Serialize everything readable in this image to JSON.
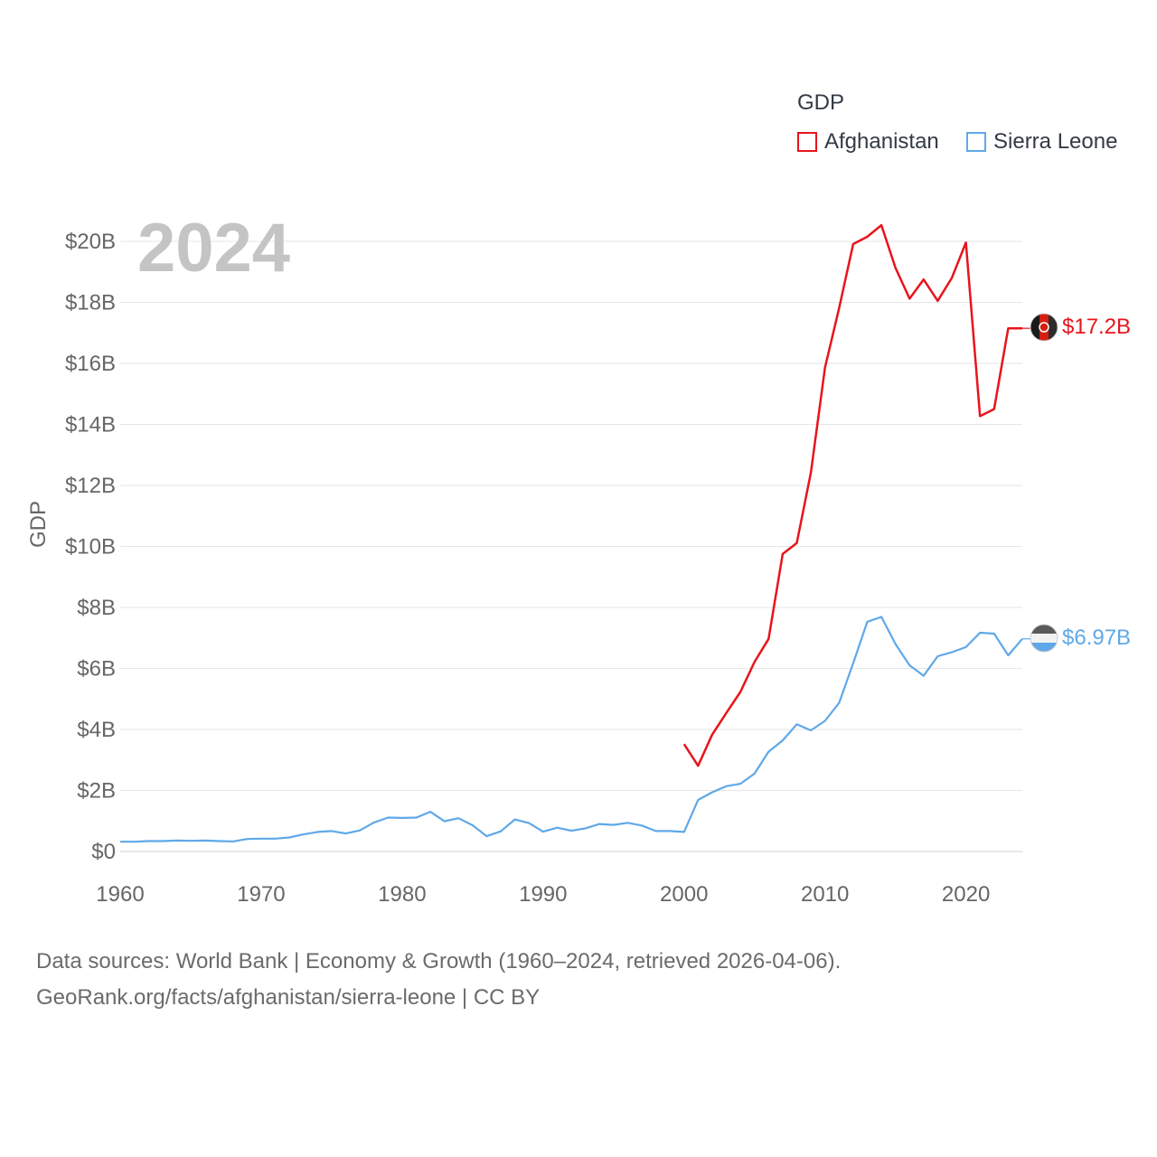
{
  "chart_data": {
    "type": "line",
    "year_watermark": "2024",
    "ylabel": "GDP",
    "legend_title": "GDP",
    "ylim": [
      0,
      21000000000
    ],
    "xlim": [
      1960,
      2024
    ],
    "y_ticks": [
      {
        "value": 0,
        "label": "$0"
      },
      {
        "value": 2000000000,
        "label": "$2B"
      },
      {
        "value": 4000000000,
        "label": "$4B"
      },
      {
        "value": 6000000000,
        "label": "$6B"
      },
      {
        "value": 8000000000,
        "label": "$8B"
      },
      {
        "value": 10000000000,
        "label": "$10B"
      },
      {
        "value": 12000000000,
        "label": "$12B"
      },
      {
        "value": 14000000000,
        "label": "$14B"
      },
      {
        "value": 16000000000,
        "label": "$16B"
      },
      {
        "value": 18000000000,
        "label": "$18B"
      },
      {
        "value": 20000000000,
        "label": "$20B"
      }
    ],
    "x_ticks": [
      {
        "value": 1960,
        "label": "1960"
      },
      {
        "value": 1970,
        "label": "1970"
      },
      {
        "value": 1980,
        "label": "1980"
      },
      {
        "value": 1990,
        "label": "1990"
      },
      {
        "value": 2000,
        "label": "2000"
      },
      {
        "value": 2010,
        "label": "2010"
      },
      {
        "value": 2020,
        "label": "2020"
      }
    ],
    "series": [
      {
        "name": "Afghanistan",
        "color": "#e8141c",
        "end_label": "$17.2B",
        "points": [
          [
            2000,
            3.52
          ],
          [
            2001,
            2.81
          ],
          [
            2002,
            3.83
          ],
          [
            2003,
            4.54
          ],
          [
            2004,
            5.23
          ],
          [
            2005,
            6.21
          ],
          [
            2006,
            6.97
          ],
          [
            2007,
            9.75
          ],
          [
            2008,
            10.11
          ],
          [
            2009,
            12.42
          ],
          [
            2010,
            15.86
          ],
          [
            2011,
            17.81
          ],
          [
            2012,
            19.91
          ],
          [
            2013,
            20.15
          ],
          [
            2014,
            20.53
          ],
          [
            2015,
            19.13
          ],
          [
            2016,
            18.12
          ],
          [
            2017,
            18.75
          ],
          [
            2018,
            18.05
          ],
          [
            2019,
            18.8
          ],
          [
            2020,
            19.96
          ],
          [
            2021,
            14.27
          ],
          [
            2022,
            14.5
          ],
          [
            2023,
            17.15
          ],
          [
            2024,
            17.15
          ]
        ]
      },
      {
        "name": "Sierra Leone",
        "color": "#5fa8e8",
        "end_label": "$6.97B",
        "points": [
          [
            1960,
            0.32
          ],
          [
            1961,
            0.32
          ],
          [
            1962,
            0.34
          ],
          [
            1963,
            0.34
          ],
          [
            1964,
            0.36
          ],
          [
            1965,
            0.35
          ],
          [
            1966,
            0.36
          ],
          [
            1967,
            0.34
          ],
          [
            1968,
            0.33
          ],
          [
            1969,
            0.41
          ],
          [
            1970,
            0.42
          ],
          [
            1971,
            0.42
          ],
          [
            1972,
            0.46
          ],
          [
            1973,
            0.56
          ],
          [
            1974,
            0.64
          ],
          [
            1975,
            0.67
          ],
          [
            1976,
            0.59
          ],
          [
            1977,
            0.69
          ],
          [
            1978,
            0.95
          ],
          [
            1979,
            1.11
          ],
          [
            1980,
            1.1
          ],
          [
            1981,
            1.11
          ],
          [
            1982,
            1.3
          ],
          [
            1983,
            0.99
          ],
          [
            1984,
            1.09
          ],
          [
            1985,
            0.86
          ],
          [
            1986,
            0.5
          ],
          [
            1987,
            0.66
          ],
          [
            1988,
            1.05
          ],
          [
            1989,
            0.93
          ],
          [
            1990,
            0.65
          ],
          [
            1991,
            0.78
          ],
          [
            1992,
            0.68
          ],
          [
            1993,
            0.76
          ],
          [
            1994,
            0.9
          ],
          [
            1995,
            0.87
          ],
          [
            1996,
            0.94
          ],
          [
            1997,
            0.85
          ],
          [
            1998,
            0.67
          ],
          [
            1999,
            0.67
          ],
          [
            2000,
            0.64
          ],
          [
            2001,
            1.69
          ],
          [
            2002,
            1.94
          ],
          [
            2003,
            2.14
          ],
          [
            2004,
            2.22
          ],
          [
            2005,
            2.55
          ],
          [
            2006,
            3.27
          ],
          [
            2007,
            3.64
          ],
          [
            2008,
            4.17
          ],
          [
            2009,
            3.97
          ],
          [
            2010,
            4.28
          ],
          [
            2011,
            4.87
          ],
          [
            2012,
            6.17
          ],
          [
            2013,
            7.53
          ],
          [
            2014,
            7.69
          ],
          [
            2015,
            6.8
          ],
          [
            2016,
            6.1
          ],
          [
            2017,
            5.76
          ],
          [
            2018,
            6.4
          ],
          [
            2019,
            6.53
          ],
          [
            2020,
            6.7
          ],
          [
            2021,
            7.17
          ],
          [
            2022,
            7.14
          ],
          [
            2023,
            6.43
          ],
          [
            2024,
            6.97
          ]
        ]
      }
    ]
  },
  "source": {
    "line1": "Data sources: World Bank | Economy & Growth (1960–2024, retrieved 2026-04-06).",
    "line2": "GeoRank.org/facts/afghanistan/sierra-leone | CC BY"
  }
}
